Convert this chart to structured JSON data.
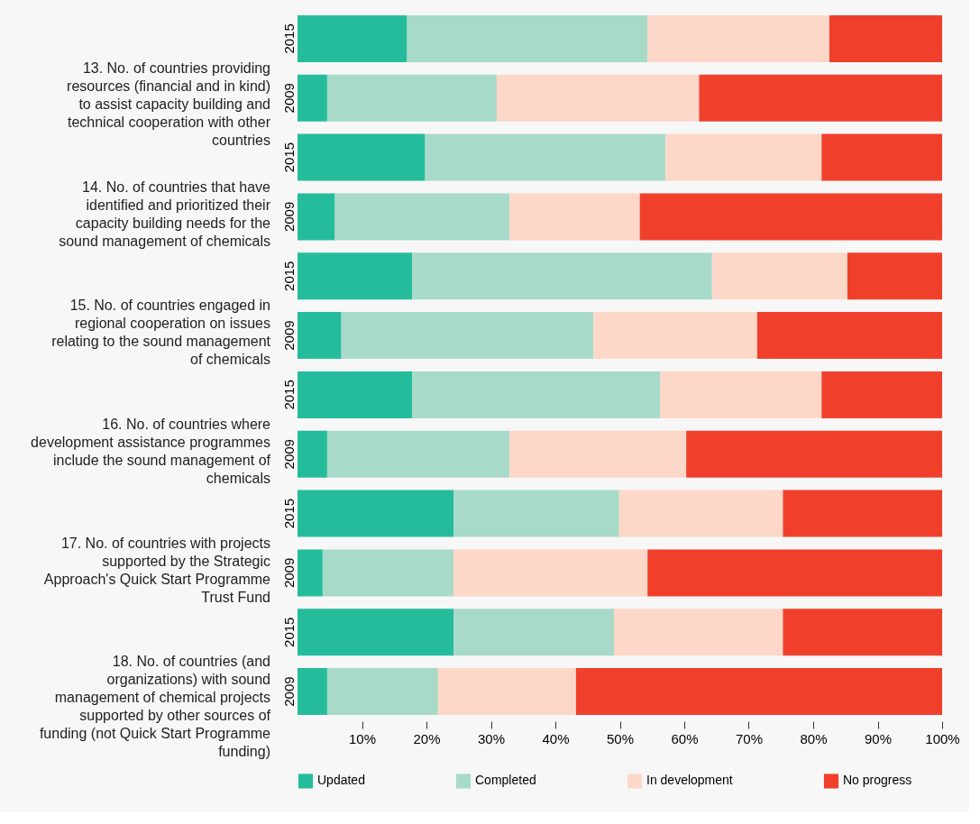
{
  "chart_data": {
    "type": "bar",
    "orientation": "horizontal",
    "stacked": true,
    "categories": [
      "2015",
      "2009",
      "2015",
      "2009",
      "2015",
      "2009",
      "2015",
      "2009",
      "2015",
      "2009",
      "2015",
      "2009"
    ],
    "annotations": [
      "13. No. of countries providing resources (financial and in kind) to assist capacity building and technical cooperation with other countries",
      "14. No. of countries that have identified and prioritized their capacity building needs for the sound management of chemicals",
      "15. No. of countries engaged in regional cooperation on issues relating to the sound management of chemicals",
      "16. No. of countries where development assistance programmes include the sound management of chemicals",
      "17. No. of countries with projects supported by the Strategic Approach's Quick Start Programme Trust Fund",
      "18. No. of countries (and organizations) with sound management of chemical projects supported by other sources of funding (not Quick Start Programme funding)"
    ],
    "series": [
      {
        "name": "Updated",
        "color": "#25bc9c",
        "values": [
          17.0,
          4.6,
          19.8,
          5.8,
          17.8,
          6.8,
          17.8,
          4.6,
          24.2,
          3.9,
          24.2,
          4.6
        ]
      },
      {
        "name": "Completed",
        "color": "#a8dac9",
        "values": [
          37.3,
          26.3,
          37.3,
          27.1,
          46.5,
          39.1,
          38.5,
          28.3,
          25.7,
          20.3,
          24.9,
          17.2
        ]
      },
      {
        "name": "In development",
        "color": "#fdd8c8",
        "values": [
          28.2,
          31.4,
          24.2,
          20.2,
          21.0,
          25.4,
          25.0,
          27.4,
          25.4,
          30.1,
          26.2,
          21.4
        ]
      },
      {
        "name": "No progress",
        "color": "#f0402b",
        "values": [
          17.5,
          37.7,
          18.7,
          46.9,
          14.7,
          28.7,
          18.7,
          39.7,
          24.7,
          45.7,
          24.7,
          56.8
        ]
      }
    ],
    "xlim": [
      0,
      100
    ],
    "xticks": [
      {
        "value": 10,
        "label": "10%"
      },
      {
        "value": 20,
        "label": "20%"
      },
      {
        "value": 30,
        "label": "30%"
      },
      {
        "value": 40,
        "label": "40%"
      },
      {
        "value": 50,
        "label": "50%"
      },
      {
        "value": 60,
        "label": "60%"
      },
      {
        "value": 70,
        "label": "70%"
      },
      {
        "value": 80,
        "label": "80%"
      },
      {
        "value": 90,
        "label": "90%"
      },
      {
        "value": 100,
        "label": "100%"
      }
    ],
    "grid": false,
    "legend": "bottom"
  }
}
